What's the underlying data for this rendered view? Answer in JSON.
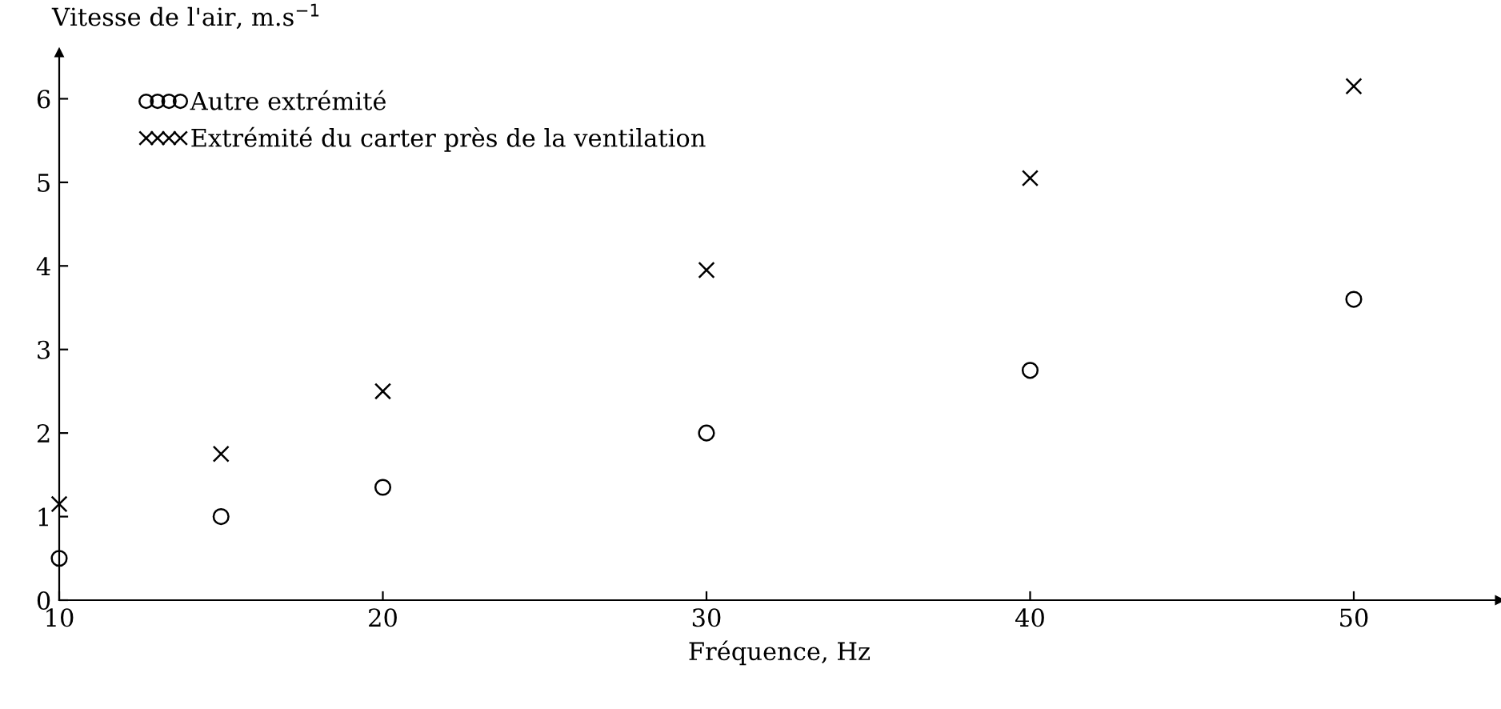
{
  "chart_data": {
    "type": "scatter",
    "xlabel": "Fréquence, Hz",
    "ylabel": "Vitesse de l'air, m.s$^{−1}$",
    "xlim": [
      10,
      54.5
    ],
    "ylim": [
      0,
      6.55
    ],
    "xticks": [
      10,
      20,
      30,
      40,
      50
    ],
    "yticks": [
      0,
      1,
      2,
      3,
      4,
      5,
      6
    ],
    "legend": "top left",
    "grid": false,
    "series": [
      {
        "name": "Autre extrémité",
        "color": "#000000",
        "marker": "circle",
        "x": [
          10,
          15,
          20,
          30,
          40,
          50
        ],
        "values": [
          0.5,
          1.0,
          1.35,
          2.0,
          2.75,
          3.6
        ]
      },
      {
        "name": "Extrémité du carter près de la ventilation",
        "color": "#000000",
        "marker": "cross",
        "x": [
          10,
          15,
          20,
          30,
          40,
          50
        ],
        "values": [
          1.15,
          1.75,
          2.5,
          3.95,
          5.05,
          6.15
        ]
      }
    ]
  }
}
